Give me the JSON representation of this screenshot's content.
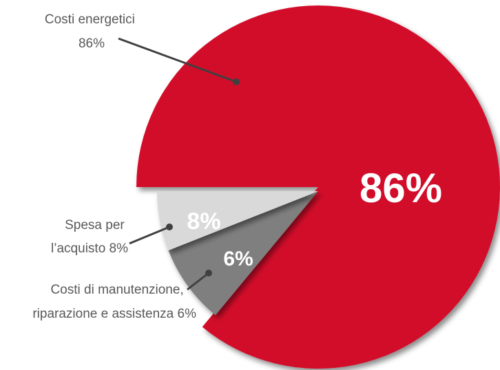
{
  "chart_data": {
    "type": "pie",
    "slices": [
      {
        "name": "Costi energetici",
        "value": 86,
        "color": "#d20b2c",
        "inner_label": "86%",
        "label_lines": [
          "Costi energetici",
          "86%"
        ]
      },
      {
        "name": "Spesa per l’acquisto",
        "value": 8,
        "color": "#7f7f7f",
        "inner_label": "8%",
        "label_lines": [
          "Spesa per",
          "l’acquisto 8%"
        ]
      },
      {
        "name": "Costi di manutenzione, riparazione e assistenza",
        "value": 6,
        "color": "#d9d9d9",
        "inner_label": "6%",
        "label_lines": [
          "Costi di manutenzione,",
          "riparazione e assistenza 6%"
        ]
      }
    ],
    "leader_color": "#404040",
    "start_angle_deg": 180,
    "direction": "clockwise"
  }
}
